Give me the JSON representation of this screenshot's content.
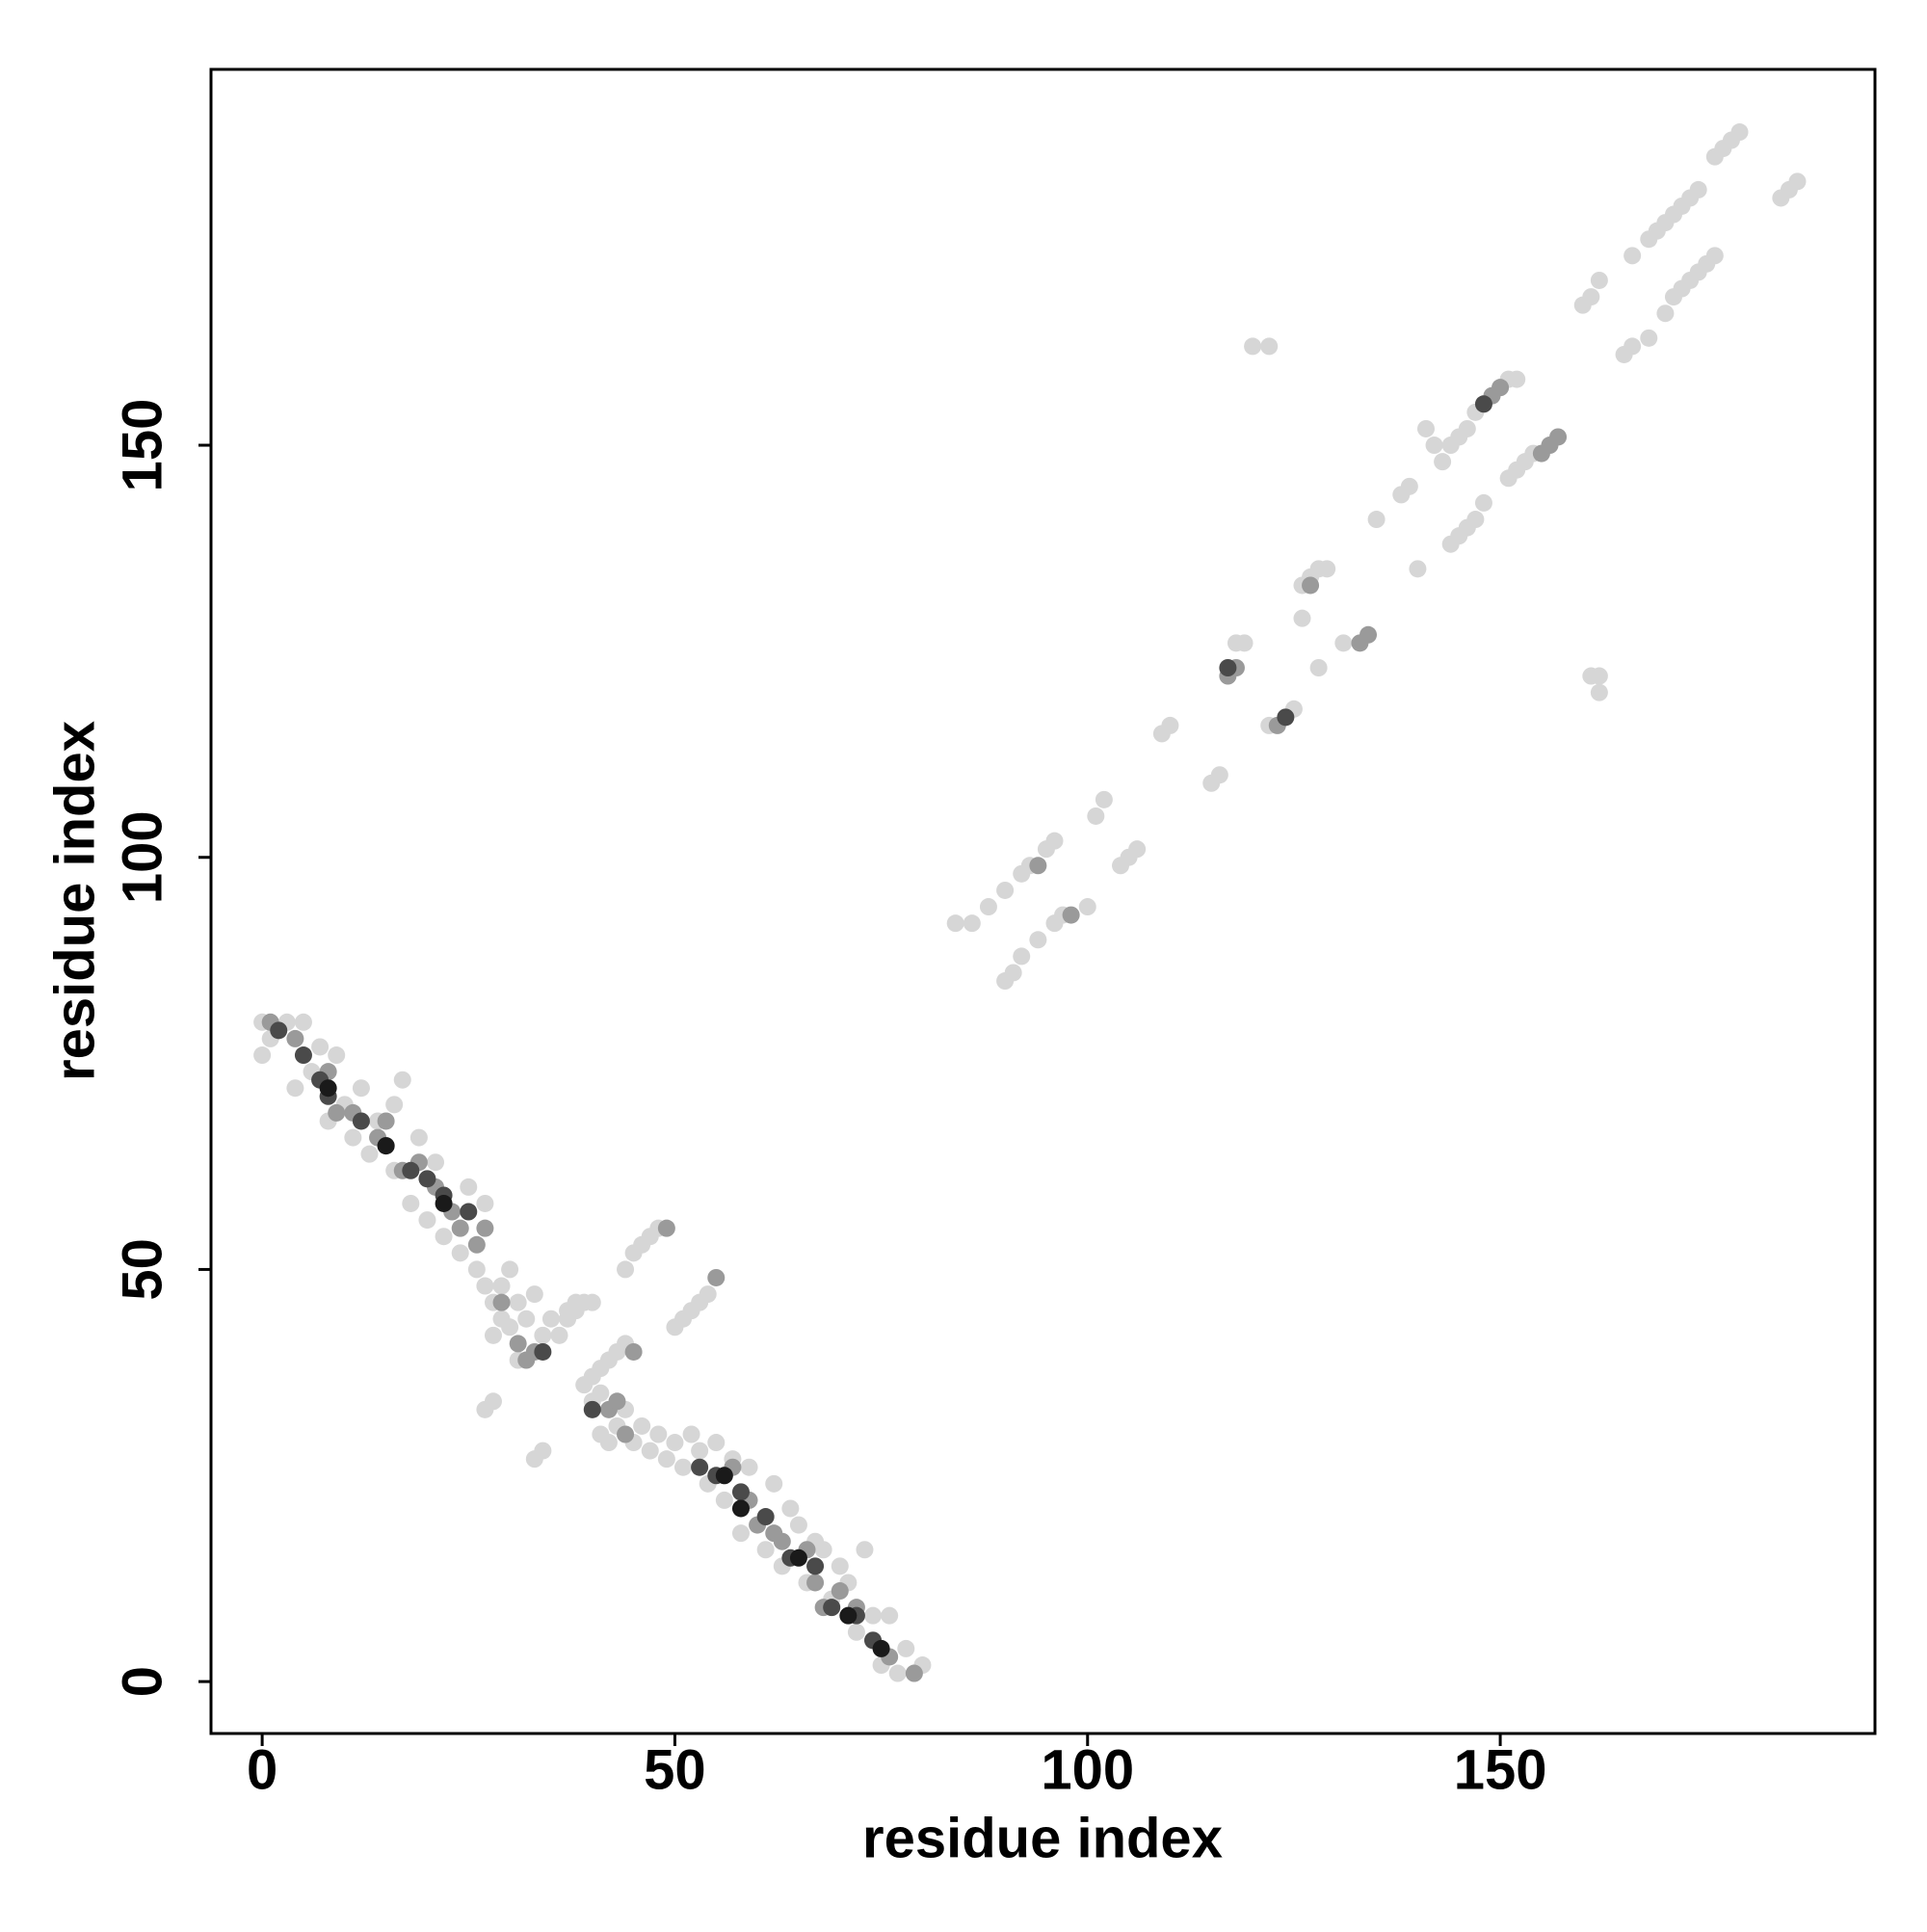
{
  "chart_data": {
    "type": "scatter",
    "x_label": "residue index",
    "y_label": "residue index",
    "xlim": [
      -6.2,
      195.4
    ],
    "ylim": [
      -6.3,
      195.6
    ],
    "xticks": [
      0,
      50,
      100,
      150
    ],
    "yticks": [
      0,
      50,
      100,
      150
    ],
    "grid": false,
    "series": [
      {
        "color": "#d6d6d6",
        "x": [
          0,
          0,
          1,
          3,
          5,
          4,
          6,
          7,
          8,
          9,
          10,
          11,
          12,
          13,
          14,
          16,
          16,
          17,
          18,
          19,
          20,
          21,
          22,
          24,
          25,
          26,
          27,
          27,
          28,
          28,
          29,
          29,
          30,
          30,
          31,
          31,
          32,
          33,
          34,
          35,
          36,
          37,
          38,
          39,
          40,
          41,
          41,
          42,
          43,
          44,
          45,
          46,
          47,
          48,
          49,
          50,
          51,
          52,
          53,
          54,
          55,
          56,
          57,
          58,
          59,
          61,
          62,
          63,
          64,
          65,
          66,
          67,
          68,
          69,
          70,
          71,
          72,
          73,
          74,
          75,
          76,
          77,
          78,
          79,
          80,
          27,
          28,
          37,
          38,
          40,
          44,
          45,
          46,
          47,
          48,
          33,
          34,
          39,
          40,
          41,
          42,
          43,
          44,
          50,
          51,
          52,
          53,
          54,
          84,
          86,
          88,
          90,
          92,
          93,
          95,
          96,
          90,
          91,
          92,
          94,
          96,
          97,
          100,
          101,
          102,
          104,
          105,
          106,
          109,
          110,
          115,
          116,
          118,
          119,
          122,
          124,
          125,
          120,
          122,
          126,
          128,
          131,
          126,
          127,
          128,
          129,
          135,
          138,
          139,
          140,
          141,
          142,
          144,
          145,
          146,
          147,
          148,
          151,
          152,
          153,
          154,
          143,
          144,
          145,
          146,
          147,
          148,
          150,
          151,
          152,
          161,
          162,
          162,
          160,
          161,
          162,
          165,
          166,
          168,
          170,
          171,
          172,
          173,
          174,
          175,
          176,
          166,
          168,
          169,
          170,
          171,
          172,
          173,
          174,
          176,
          177,
          178,
          179,
          184,
          185,
          186
        ],
        "y": [
          76,
          80,
          78,
          80,
          80,
          72,
          74,
          77,
          68,
          76,
          70,
          66,
          72,
          64,
          68,
          62,
          70,
          73,
          58,
          66,
          56,
          63,
          54,
          52,
          60,
          50,
          58,
          48,
          46,
          42,
          48,
          44,
          50,
          43,
          46,
          39,
          44,
          47,
          42,
          44,
          42,
          44,
          45,
          46,
          34,
          30,
          35,
          29,
          31,
          33,
          29,
          31,
          28,
          30,
          27,
          29,
          26,
          30,
          28,
          24,
          29,
          22,
          27,
          18,
          26,
          16,
          24,
          14,
          21,
          19,
          12,
          17,
          16,
          10,
          14,
          12,
          6,
          16,
          8,
          2,
          8,
          1,
          4,
          1,
          2,
          33,
          34,
          45,
          46,
          46,
          50,
          52,
          53,
          54,
          55,
          27,
          28,
          36,
          37,
          38,
          39,
          40,
          41,
          43,
          44,
          45,
          46,
          47,
          92,
          92,
          94,
          96,
          98,
          99,
          101,
          102,
          85,
          86,
          88,
          90,
          92,
          93,
          94,
          105,
          107,
          99,
          100,
          101,
          115,
          116,
          109,
          110,
          126,
          126,
          116,
          117,
          118,
          162,
          162,
          129,
          123,
          126,
          133,
          134,
          135,
          135,
          141,
          144,
          145,
          135,
          152,
          150,
          138,
          139,
          140,
          141,
          143,
          146,
          147,
          148,
          149,
          148,
          150,
          151,
          152,
          154,
          155,
          157,
          158,
          158,
          122,
          122,
          120,
          167,
          168,
          170,
          161,
          162,
          163,
          166,
          168,
          169,
          170,
          171,
          172,
          173,
          173,
          175,
          176,
          177,
          178,
          179,
          180,
          181,
          185,
          186,
          187,
          188,
          180,
          181,
          182
        ]
      },
      {
        "color": "#9a9a9a",
        "x": [
          1,
          4,
          8,
          9,
          11,
          14,
          15,
          17,
          19,
          21,
          23,
          24,
          26,
          27,
          29,
          31,
          32,
          33,
          42,
          43,
          44,
          49,
          55,
          56,
          57,
          59,
          60,
          62,
          63,
          66,
          67,
          68,
          70,
          72,
          74,
          76,
          79,
          45,
          94,
          98,
          117,
          118,
          123,
          133,
          134,
          127,
          149,
          150,
          155,
          156,
          157
        ],
        "y": [
          80,
          78,
          74,
          69,
          69,
          66,
          68,
          62,
          63,
          60,
          57,
          55,
          53,
          55,
          46,
          41,
          39,
          40,
          33,
          34,
          30,
          55,
          49,
          25,
          26,
          22,
          19,
          18,
          17,
          16,
          12,
          9,
          11,
          9,
          5,
          3,
          1,
          40,
          99,
          93,
          122,
          123,
          116,
          126,
          127,
          133,
          156,
          157,
          149,
          150,
          151
        ]
      },
      {
        "color": "#4a4a4a",
        "x": [
          2,
          5,
          7,
          8,
          12,
          15,
          18,
          20,
          22,
          25,
          34,
          40,
          53,
          55,
          58,
          61,
          64,
          67,
          69,
          72,
          74,
          117,
          124,
          148
        ],
        "y": [
          79,
          76,
          73,
          71,
          68,
          65,
          62,
          61,
          59,
          57,
          40,
          33,
          26,
          25,
          23,
          20,
          15,
          14,
          9,
          8,
          5,
          123,
          117,
          155
        ]
      },
      {
        "color": "#1a1a1a",
        "x": [
          8,
          15,
          22,
          56,
          58,
          65,
          71,
          75
        ],
        "y": [
          72,
          65,
          58,
          25,
          21,
          15,
          8,
          4
        ]
      }
    ]
  }
}
